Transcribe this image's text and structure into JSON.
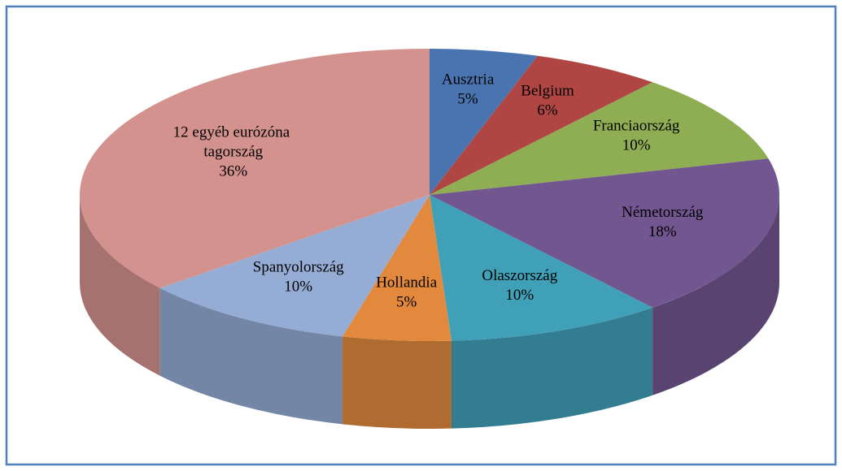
{
  "chart_data": {
    "type": "pie",
    "categories": [
      "Ausztria",
      "Belgium",
      "Franciaország",
      "Németország",
      "Olaszország",
      "Hollandia",
      "Spanyolország",
      "12 egyéb eurózóna tagország"
    ],
    "values": [
      5,
      6,
      10,
      18,
      10,
      5,
      10,
      36
    ],
    "value_labels": [
      "5%",
      "6%",
      "10%",
      "18%",
      "10%",
      "5%",
      "10%",
      "36%"
    ],
    "colors": [
      "#4a74b0",
      "#b04644",
      "#8fad52",
      "#725690",
      "#40a0b8",
      "#e2893e",
      "#95acd4",
      "#d4928f"
    ]
  }
}
